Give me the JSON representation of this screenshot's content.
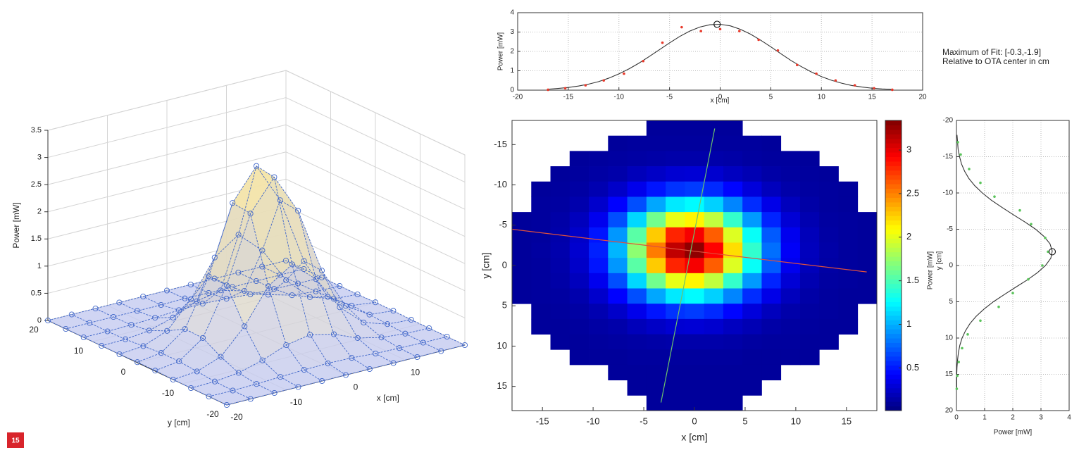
{
  "figure_label": "15",
  "chart_data": [
    {
      "type": "surface3d",
      "xlabel": "x [cm]",
      "ylabel": "y [cm]",
      "zlabel": "Power [mW]",
      "x": [
        -20,
        -16,
        -12,
        -8,
        -4,
        0,
        4,
        8,
        12,
        16,
        20
      ],
      "y": [
        -20,
        -16,
        -12,
        -8,
        -4,
        0,
        4,
        8,
        12,
        16,
        20
      ],
      "z": [
        [
          0,
          0,
          0,
          0,
          0,
          0,
          0,
          0,
          0,
          0,
          0
        ],
        [
          0,
          0,
          0.01,
          0.03,
          0.05,
          0.06,
          0.05,
          0.02,
          0.01,
          0,
          0
        ],
        [
          0,
          0.01,
          0.06,
          0.18,
          0.35,
          0.43,
          0.33,
          0.15,
          0.05,
          0.01,
          0
        ],
        [
          0,
          0.04,
          0.2,
          0.65,
          1.28,
          1.57,
          1.19,
          0.56,
          0.17,
          0.03,
          0
        ],
        [
          0.01,
          0.07,
          0.39,
          1.25,
          2.46,
          3.02,
          2.29,
          1.08,
          0.32,
          0.05,
          0.01
        ],
        [
          0.01,
          0.07,
          0.4,
          1.26,
          2.5,
          3.07,
          2.33,
          1.1,
          0.33,
          0.06,
          0.01
        ],
        [
          0,
          0.04,
          0.21,
          0.68,
          1.34,
          1.65,
          1.25,
          0.59,
          0.17,
          0.03,
          0
        ],
        [
          0,
          0.01,
          0.06,
          0.19,
          0.38,
          0.47,
          0.35,
          0.17,
          0.05,
          0.01,
          0
        ],
        [
          0,
          0,
          0.01,
          0.03,
          0.06,
          0.07,
          0.05,
          0.02,
          0.01,
          0,
          0
        ],
        [
          0,
          0,
          0,
          0,
          0,
          0.01,
          0,
          0,
          0,
          0,
          0
        ],
        [
          0,
          0,
          0,
          0,
          0,
          0,
          0,
          0,
          0,
          0,
          0
        ]
      ],
      "xlim": [
        -20,
        20
      ],
      "ylim": [
        -20,
        20
      ],
      "zlim": [
        0,
        3.5
      ],
      "xticks": [
        -20,
        -10,
        0,
        10
      ],
      "yticks": [
        -20,
        -10,
        0,
        10,
        20
      ],
      "zticks": [
        0,
        0.5,
        1,
        1.5,
        2,
        2.5,
        3,
        3.5
      ],
      "grid": true,
      "color": "#3f66c9"
    },
    {
      "type": "line",
      "orientation": "vertical",
      "xlabel": "x [cm]",
      "ylabel": "Power [mW]",
      "xlim": [
        -20,
        20
      ],
      "ylim": [
        0,
        4
      ],
      "xticks": [
        -20,
        -15,
        -10,
        -5,
        0,
        5,
        10,
        15,
        20
      ],
      "yticks": [
        0,
        1,
        2,
        3,
        4
      ],
      "grid": true,
      "series": [
        {
          "style": "line",
          "color": "#333333",
          "x": [
            -17,
            -16,
            -15,
            -14,
            -13,
            -12,
            -11,
            -10,
            -9,
            -8,
            -7,
            -6,
            -5,
            -4,
            -3,
            -2,
            -1,
            0,
            1,
            2,
            3,
            4,
            5,
            6,
            7,
            8,
            9,
            10,
            11,
            12,
            13,
            14,
            15,
            16,
            17
          ],
          "values": [
            0.05,
            0.09,
            0.14,
            0.21,
            0.31,
            0.44,
            0.62,
            0.84,
            1.1,
            1.4,
            1.74,
            2.09,
            2.44,
            2.77,
            3.05,
            3.26,
            3.38,
            3.4,
            3.32,
            3.14,
            2.89,
            2.58,
            2.24,
            1.88,
            1.53,
            1.22,
            0.94,
            0.7,
            0.51,
            0.36,
            0.24,
            0.16,
            0.1,
            0.06,
            0.04
          ]
        },
        {
          "style": "points",
          "color": "#e8392b",
          "x": [
            -17,
            -15.3,
            -13.3,
            -11.5,
            -9.5,
            -7.6,
            -5.7,
            -3.8,
            -1.9,
            0,
            1.9,
            3.8,
            5.7,
            7.6,
            9.5,
            11.4,
            13.3,
            15.2,
            17
          ],
          "values": [
            0.02,
            0.1,
            0.25,
            0.5,
            0.85,
            1.5,
            2.45,
            3.25,
            3.05,
            3.15,
            3.05,
            2.6,
            2.05,
            1.3,
            0.85,
            0.5,
            0.25,
            0.1,
            0.02
          ]
        }
      ],
      "max_marker": {
        "x": -0.3,
        "y": 3.4
      },
      "annotation": [
        "Maximum of Fit: [-0.3,-1.9]",
        "Relative to OTA center in cm"
      ]
    },
    {
      "type": "heatmap",
      "xlabel": "x [cm]",
      "ylabel": "y [cm]",
      "xlim": [
        -18,
        18
      ],
      "ylim": [
        -18,
        18
      ],
      "y_reversed": true,
      "xticks": [
        -15,
        -10,
        -5,
        0,
        5,
        10,
        15
      ],
      "yticks": [
        -15,
        -10,
        -5,
        0,
        5,
        10,
        15
      ],
      "colormap": "jet",
      "clim": [
        0.01,
        3.34
      ],
      "cticks": [
        0.5,
        1,
        1.5,
        2,
        2.5,
        3
      ],
      "z": [
        [
          null,
          null,
          null,
          null,
          null,
          null,
          null,
          0.1,
          0.1,
          0.1,
          0.1,
          0.1,
          null,
          null,
          null,
          null,
          null,
          null,
          null
        ],
        [
          null,
          null,
          null,
          null,
          null,
          0.1,
          0.11,
          0.11,
          0.11,
          0.11,
          0.11,
          0.11,
          0.11,
          0.1,
          null,
          null,
          null,
          null,
          null
        ],
        [
          null,
          null,
          null,
          0.1,
          0.11,
          0.12,
          0.13,
          0.14,
          0.15,
          0.15,
          0.15,
          0.14,
          0.12,
          0.11,
          0.11,
          0.1,
          null,
          null,
          null
        ],
        [
          null,
          null,
          0.1,
          0.11,
          0.13,
          0.15,
          0.2,
          0.24,
          0.28,
          0.29,
          0.27,
          0.22,
          0.18,
          0.14,
          0.12,
          0.11,
          0.1,
          null,
          null
        ],
        [
          null,
          0.1,
          0.11,
          0.13,
          0.17,
          0.25,
          0.36,
          0.49,
          0.59,
          0.62,
          0.56,
          0.44,
          0.31,
          0.21,
          0.15,
          0.12,
          0.11,
          0.1,
          null
        ],
        [
          null,
          0.11,
          0.12,
          0.16,
          0.26,
          0.43,
          0.68,
          0.97,
          1.19,
          1.25,
          1.11,
          0.86,
          0.57,
          0.35,
          0.21,
          0.14,
          0.11,
          0.1,
          null
        ],
        [
          0.1,
          0.11,
          0.14,
          0.21,
          0.37,
          0.68,
          1.13,
          1.63,
          2.02,
          2.12,
          1.89,
          1.43,
          0.93,
          0.54,
          0.29,
          0.17,
          0.12,
          0.11,
          0.1
        ],
        [
          0.1,
          0.11,
          0.15,
          0.25,
          0.49,
          0.92,
          1.55,
          2.26,
          2.81,
          2.95,
          2.62,
          1.98,
          1.28,
          0.72,
          0.37,
          0.2,
          0.13,
          0.11,
          0.1
        ],
        [
          0.1,
          0.12,
          0.16,
          0.27,
          0.53,
          1.02,
          1.72,
          2.52,
          3.13,
          3.29,
          2.92,
          2.2,
          1.42,
          0.79,
          0.4,
          0.21,
          0.14,
          0.11,
          0.1
        ],
        [
          0.1,
          0.11,
          0.15,
          0.25,
          0.49,
          0.92,
          1.55,
          2.26,
          2.81,
          2.95,
          2.62,
          1.98,
          1.28,
          0.72,
          0.37,
          0.2,
          0.13,
          0.11,
          0.1
        ],
        [
          0.1,
          0.11,
          0.14,
          0.21,
          0.37,
          0.68,
          1.13,
          1.63,
          2.02,
          2.12,
          1.89,
          1.43,
          0.93,
          0.54,
          0.29,
          0.17,
          0.12,
          0.11,
          0.1
        ],
        [
          0.1,
          0.11,
          0.12,
          0.16,
          0.26,
          0.43,
          0.68,
          0.97,
          1.19,
          1.25,
          1.11,
          0.86,
          0.57,
          0.35,
          0.21,
          0.14,
          0.11,
          0.1,
          0.1
        ],
        [
          null,
          0.1,
          0.11,
          0.13,
          0.17,
          0.25,
          0.36,
          0.49,
          0.59,
          0.62,
          0.56,
          0.44,
          0.31,
          0.21,
          0.15,
          0.12,
          0.11,
          0.1,
          null
        ],
        [
          null,
          0.1,
          0.1,
          0.11,
          0.13,
          0.15,
          0.2,
          0.24,
          0.28,
          0.29,
          0.27,
          0.22,
          0.18,
          0.14,
          0.12,
          0.11,
          0.1,
          0.1,
          null
        ],
        [
          null,
          null,
          0.1,
          0.1,
          0.11,
          0.12,
          0.13,
          0.14,
          0.15,
          0.15,
          0.15,
          0.14,
          0.12,
          0.11,
          0.11,
          0.1,
          0.1,
          null,
          null
        ],
        [
          null,
          null,
          null,
          0.1,
          0.1,
          0.1,
          0.11,
          0.11,
          0.11,
          0.11,
          0.11,
          0.11,
          0.1,
          0.1,
          0.1,
          0.1,
          null,
          null,
          null
        ],
        [
          null,
          null,
          null,
          null,
          null,
          0.1,
          0.1,
          0.1,
          0.1,
          0.1,
          0.1,
          0.1,
          0.1,
          0.1,
          null,
          null,
          null,
          null,
          null
        ],
        [
          null,
          null,
          null,
          null,
          null,
          null,
          0.1,
          0.1,
          0.1,
          0.1,
          0.1,
          0.1,
          0.1,
          null,
          null,
          null,
          null,
          null,
          null
        ],
        [
          null,
          null,
          null,
          null,
          null,
          null,
          null,
          0.1,
          0.1,
          0.1,
          0.1,
          0.1,
          null,
          null,
          null,
          null,
          null,
          null,
          null
        ]
      ],
      "lines": [
        {
          "color": "#e0503c",
          "x": [
            -18,
            17
          ],
          "y": [
            -4.5,
            0.8
          ]
        },
        {
          "color": "#6cc46c",
          "x": [
            2,
            -3.3
          ],
          "y": [
            -17,
            17
          ]
        }
      ]
    },
    {
      "type": "line",
      "orientation": "horizontal",
      "xlabel": "Power [mW]",
      "ylabel": "y [cm]",
      "ylabel_extra": "Power [mW]",
      "xlim": [
        0,
        4
      ],
      "ylim": [
        -20,
        20
      ],
      "y_reversed": true,
      "xticks": [
        0,
        1,
        2,
        3,
        4
      ],
      "yticks": [
        -20,
        -15,
        -10,
        -5,
        0,
        5,
        10,
        15,
        20
      ],
      "grid": true,
      "series": [
        {
          "style": "line",
          "color": "#333333",
          "y": [
            -18,
            -17,
            -16,
            -15,
            -14,
            -13,
            -12,
            -11,
            -10,
            -9,
            -8,
            -7,
            -6,
            -5,
            -4,
            -3,
            -2,
            -1,
            0,
            1,
            2,
            3,
            4,
            5,
            6,
            7,
            8,
            9,
            10,
            11,
            12,
            13,
            14,
            15,
            16,
            17
          ],
          "values": [
            0.02,
            0.04,
            0.06,
            0.11,
            0.18,
            0.29,
            0.44,
            0.65,
            0.92,
            1.24,
            1.62,
            2.02,
            2.43,
            2.81,
            3.11,
            3.32,
            3.4,
            3.35,
            3.16,
            2.87,
            2.51,
            2.1,
            1.7,
            1.31,
            0.98,
            0.7,
            0.48,
            0.32,
            0.2,
            0.12,
            0.07,
            0.04,
            0.02,
            0.01,
            0.01,
            0.01
          ]
        },
        {
          "style": "points",
          "color": "#5cc45c",
          "y": [
            -17,
            -15.3,
            -13.3,
            -11.4,
            -9.5,
            -7.6,
            -5.7,
            -3.8,
            -1.9,
            0,
            1.9,
            3.8,
            5.7,
            7.6,
            9.5,
            11.4,
            13.3,
            15.2,
            17
          ],
          "values": [
            0.05,
            0.15,
            0.45,
            0.85,
            1.35,
            2.25,
            2.65,
            3.15,
            3.25,
            3.05,
            2.55,
            2.0,
            1.5,
            0.85,
            0.4,
            0.2,
            0.08,
            0.03,
            0.01
          ]
        }
      ],
      "max_marker": {
        "x": 3.4,
        "y": -1.9
      }
    }
  ]
}
